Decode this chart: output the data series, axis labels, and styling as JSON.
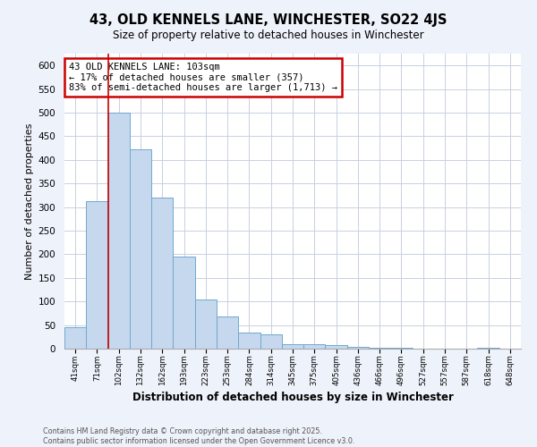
{
  "title": "43, OLD KENNELS LANE, WINCHESTER, SO22 4JS",
  "subtitle": "Size of property relative to detached houses in Winchester",
  "xlabel": "Distribution of detached houses by size in Winchester",
  "ylabel": "Number of detached properties",
  "bar_values": [
    46,
    313,
    500,
    423,
    320,
    195,
    105,
    68,
    35,
    31,
    10,
    10,
    8,
    4,
    2,
    1,
    0,
    0,
    0,
    1
  ],
  "bar_labels": [
    "41sqm",
    "71sqm",
    "102sqm",
    "132sqm",
    "162sqm",
    "193sqm",
    "223sqm",
    "253sqm",
    "284sqm",
    "314sqm",
    "345sqm",
    "375sqm",
    "405sqm",
    "436sqm",
    "466sqm",
    "496sqm",
    "527sqm",
    "557sqm",
    "587sqm",
    "618sqm",
    "648sqm"
  ],
  "bar_color": "#c5d8ee",
  "bar_edge_color": "#6fa8d0",
  "marker_line_color": "#cc0000",
  "annotation_box_color": "#cc0000",
  "annotation_title": "43 OLD KENNELS LANE: 103sqm",
  "annotation_line1": "← 17% of detached houses are smaller (357)",
  "annotation_line2": "83% of semi-detached houses are larger (1,713) →",
  "ylim": [
    0,
    625
  ],
  "yticks": [
    0,
    50,
    100,
    150,
    200,
    250,
    300,
    350,
    400,
    450,
    500,
    550,
    600
  ],
  "footer_line1": "Contains HM Land Registry data © Crown copyright and database right 2025.",
  "footer_line2": "Contains public sector information licensed under the Open Government Licence v3.0.",
  "background_color": "#eef2fa",
  "plot_background_color": "#ffffff",
  "grid_color": "#c8d0e0"
}
